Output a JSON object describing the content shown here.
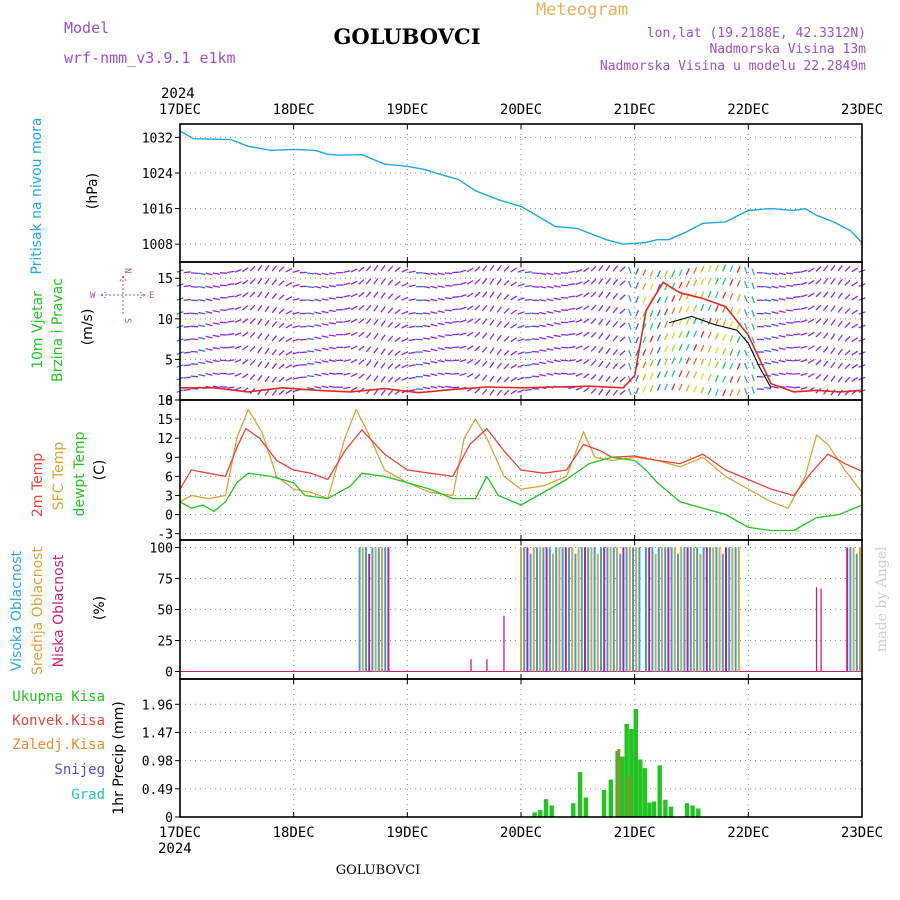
{
  "header": {
    "station": "GOLUBOVCI",
    "model_label": "Model",
    "model_name": "wrf-nmm_v3.9.1 e1km",
    "meteogram_label": "Meteogram",
    "coords": "lon,lat (19.2188E, 42.3312N)",
    "elevation": "Nadmorska Visina 13m",
    "model_elevation": "Nadmorska Visina u modelu 22.2849m",
    "year_top": "2024",
    "year_bottom": "2024",
    "footer_station": "GOLUBOVCI",
    "credit": "made by Angel"
  },
  "colors": {
    "pressure": "#1ea8e6",
    "wind_speed": "#e02a20",
    "gust": "#000000",
    "t2m": "#e8453a",
    "tsfc": "#d9a43a",
    "dewpt": "#22c422",
    "high_cloud": "#2fa6e0",
    "mid_cloud": "#d9a43a",
    "low_cloud": "#c8207a",
    "total_precip": "#22c422",
    "conv_precip": "#e8453a",
    "frozen": "#ee8a2a",
    "snow": "#5050d8",
    "hail": "#22c4b0",
    "wind_barb_low": "#8a2be2"
  },
  "chart_data": [
    {
      "type": "line",
      "id": "pressure",
      "ylabel_1": "Pritisak na nivou mora",
      "ylabel_2": "(hPa)",
      "x_ticks": [
        "17DEC",
        "18DEC",
        "19DEC",
        "20DEC",
        "21DEC",
        "22DEC",
        "23DEC"
      ],
      "xlim": [
        0,
        6
      ],
      "ylim": [
        1004,
        1035
      ],
      "y_ticks": [
        "1008",
        "1016",
        "1024",
        "1032"
      ],
      "y_tick_values": [
        1008,
        1016,
        1024,
        1032
      ],
      "grid": true,
      "series": [
        {
          "x": [
            0,
            0.12,
            0.25,
            0.45,
            0.6,
            0.8,
            1.0,
            1.1,
            1.2,
            1.3,
            1.4,
            1.6,
            1.8,
            2.0,
            2.15,
            2.3,
            2.45,
            2.6,
            2.8,
            3.0,
            3.1,
            3.3,
            3.5,
            3.6,
            3.75,
            3.9,
            4.0,
            4.1,
            4.2,
            4.3,
            4.45,
            4.6,
            4.8,
            5.0,
            5.2,
            5.4,
            5.5,
            5.6,
            5.75,
            5.9,
            6.0
          ],
          "values": [
            1033.4,
            1031.7,
            1031.6,
            1031.5,
            1030.0,
            1029.1,
            1029.3,
            1029.2,
            1029.0,
            1028.2,
            1028.0,
            1028.1,
            1026.0,
            1025.5,
            1024.8,
            1023.6,
            1022.5,
            1020.0,
            1018.0,
            1016.5,
            1015.0,
            1012.0,
            1011.5,
            1010.5,
            1009.0,
            1008.0,
            1008.2,
            1008.4,
            1009.0,
            1009.0,
            1010.7,
            1012.7,
            1013.0,
            1015.6,
            1016.0,
            1015.6,
            1016.0,
            1014.5,
            1013.0,
            1011.0,
            1008.3
          ]
        }
      ]
    },
    {
      "type": "line",
      "id": "wind",
      "ylabel_1": "10m Vjetar",
      "ylabel_2": "Brzina i Pravac",
      "ylabel_3": "(m/s)",
      "compass_n": "N",
      "compass_w": "W",
      "compass_e": "E",
      "compass_s": "S",
      "xlim": [
        0,
        6
      ],
      "ylim": [
        0,
        17
      ],
      "y_ticks": [
        "0",
        "5",
        "10",
        "15"
      ],
      "y_tick_values": [
        0,
        5,
        10,
        15
      ],
      "grid": true,
      "series": [
        {
          "name_role": "speed",
          "x": [
            0,
            0.3,
            0.6,
            0.9,
            1.2,
            1.5,
            1.8,
            2.1,
            2.4,
            2.7,
            3.0,
            3.3,
            3.6,
            3.9,
            4.0,
            4.1,
            4.25,
            4.4,
            4.6,
            4.8,
            5.0,
            5.2,
            5.4,
            5.6,
            5.8,
            6.0
          ],
          "values": [
            1.5,
            1.5,
            1.0,
            1.5,
            1.2,
            1.0,
            1.4,
            0.9,
            1.3,
            1.6,
            1.5,
            1.6,
            1.7,
            1.5,
            3.0,
            11.0,
            14.5,
            13.2,
            12.5,
            11.5,
            8.0,
            2.0,
            1.0,
            1.2,
            1.0,
            1.2
          ]
        },
        {
          "name_role": "gust",
          "x": [
            4.3,
            4.5,
            4.7,
            4.9,
            5.0,
            5.1,
            5.2
          ],
          "values": [
            9.5,
            10.3,
            9.3,
            8.6,
            7.0,
            4.0,
            1.5
          ]
        }
      ]
    },
    {
      "type": "line",
      "id": "temperature",
      "ylabel_1": "2m Temp",
      "ylabel_2": "SFC Temp",
      "ylabel_3": "dewpt Temp",
      "ylabel_4": "(C)",
      "xlim": [
        0,
        6
      ],
      "ylim": [
        -4,
        18
      ],
      "y_ticks": [
        "-3",
        "0",
        "3",
        "6",
        "9",
        "12",
        "15",
        "18"
      ],
      "y_tick_values": [
        -3,
        0,
        3,
        6,
        9,
        12,
        15,
        18
      ],
      "grid": true,
      "series": [
        {
          "name_role": "t2m",
          "x": [
            0,
            0.1,
            0.25,
            0.4,
            0.5,
            0.58,
            0.7,
            0.85,
            1.0,
            1.15,
            1.3,
            1.45,
            1.6,
            1.8,
            2.0,
            2.2,
            2.4,
            2.55,
            2.7,
            2.85,
            3.0,
            3.2,
            3.4,
            3.55,
            3.7,
            3.8,
            4.0,
            4.2,
            4.4,
            4.6,
            4.8,
            5.0,
            5.2,
            5.4,
            5.55,
            5.7,
            5.85,
            6.0
          ],
          "values": [
            4,
            7,
            6.5,
            6,
            10.5,
            13.5,
            12,
            8.5,
            7,
            6.5,
            5.5,
            10,
            13.3,
            9.5,
            7,
            6.5,
            6,
            11,
            13.5,
            10,
            7,
            6.5,
            7,
            11,
            10,
            9,
            9.2,
            8.5,
            8,
            9.5,
            7,
            5.5,
            4,
            3,
            6.5,
            9.5,
            8,
            6.8
          ]
        },
        {
          "name_role": "tsfc",
          "x": [
            0,
            0.1,
            0.25,
            0.4,
            0.5,
            0.6,
            0.72,
            0.85,
            1.0,
            1.15,
            1.3,
            1.45,
            1.55,
            1.65,
            1.8,
            2.0,
            2.2,
            2.4,
            2.5,
            2.6,
            2.7,
            2.85,
            3.0,
            3.2,
            3.4,
            3.55,
            3.65,
            3.8,
            4.0,
            4.2,
            4.4,
            4.6,
            4.8,
            5.0,
            5.2,
            5.35,
            5.5,
            5.6,
            5.7,
            5.85,
            6.0
          ],
          "values": [
            2,
            3,
            2.5,
            3,
            12,
            16.5,
            13,
            6,
            4,
            3.5,
            2.5,
            12,
            16.5,
            13,
            7,
            5,
            3.5,
            3,
            12,
            15,
            12,
            6,
            4,
            4.5,
            6,
            13,
            9,
            8.5,
            9,
            8.5,
            7.5,
            9,
            6,
            4,
            2,
            1,
            6,
            12.5,
            11,
            7,
            3.5
          ]
        },
        {
          "name_role": "dewpt",
          "x": [
            0,
            0.1,
            0.2,
            0.3,
            0.4,
            0.5,
            0.6,
            0.8,
            1.0,
            1.1,
            1.3,
            1.5,
            1.6,
            1.8,
            2.0,
            2.2,
            2.4,
            2.6,
            2.7,
            2.8,
            3.0,
            3.2,
            3.4,
            3.6,
            3.8,
            4.0,
            4.1,
            4.2,
            4.4,
            4.6,
            4.8,
            5.0,
            5.2,
            5.4,
            5.6,
            5.8,
            6.0
          ],
          "values": [
            2,
            1,
            1.5,
            0.5,
            2,
            5,
            6.5,
            6,
            5,
            3,
            2.5,
            4.5,
            6.5,
            6,
            5,
            4,
            2.5,
            2.5,
            6,
            3,
            1.5,
            3.5,
            5.5,
            8,
            9,
            8.5,
            7,
            5,
            2,
            1,
            0,
            -2,
            -2.5,
            -2.5,
            -0.5,
            0,
            1.5
          ]
        }
      ]
    },
    {
      "type": "bar",
      "id": "cloud",
      "ylabel_1": "Visoka Oblacnost",
      "ylabel_2": "Srednja Oblacnost",
      "ylabel_3": "Niska Oblacnost",
      "ylabel_4": "(%)",
      "xlim": [
        0,
        6
      ],
      "ylim": [
        -6,
        106
      ],
      "y_ticks": [
        "0",
        "25",
        "50",
        "75",
        "100"
      ],
      "y_tick_values": [
        0,
        25,
        50,
        75,
        100
      ],
      "grid": true,
      "high_blocks": [
        {
          "from": 1.58,
          "to": 1.84,
          "value": 100
        },
        {
          "from": 3.0,
          "to": 4.06,
          "value": 100
        },
        {
          "from": 4.1,
          "to": 4.92,
          "value": 100
        },
        {
          "from": 5.87,
          "to": 6.0,
          "value": 100
        }
      ],
      "low_spikes": [
        {
          "x": 2.56,
          "value": 10
        },
        {
          "x": 2.7,
          "value": 10
        },
        {
          "x": 2.85,
          "value": 45
        },
        {
          "x": 5.6,
          "value": 68
        },
        {
          "x": 5.64,
          "value": 67
        }
      ]
    },
    {
      "type": "bar",
      "id": "precip",
      "ylabel_1": "1hr Precip (mm)",
      "legend": [
        "Ukupna Kisa",
        "Konvek.Kisa",
        "Zaledj.Kisa",
        "Snijeg",
        "Grad"
      ],
      "x_ticks": [
        "17DEC",
        "18DEC",
        "19DEC",
        "20DEC",
        "21DEC",
        "22DEC",
        "23DEC"
      ],
      "xlim": [
        0,
        6
      ],
      "ylim": [
        0,
        2.4
      ],
      "y_ticks": [
        "0",
        "0.49",
        "0.98",
        "1.47",
        "1.96"
      ],
      "y_tick_values": [
        0,
        0.49,
        0.98,
        1.47,
        1.96
      ],
      "grid": true,
      "bars": [
        {
          "x": 3.12,
          "value": 0.08
        },
        {
          "x": 3.17,
          "value": 0.12
        },
        {
          "x": 3.22,
          "value": 0.31
        },
        {
          "x": 3.27,
          "value": 0.2
        },
        {
          "x": 3.46,
          "value": 0.24
        },
        {
          "x": 3.52,
          "value": 0.78
        },
        {
          "x": 3.57,
          "value": 0.34
        },
        {
          "x": 3.73,
          "value": 0.47
        },
        {
          "x": 3.79,
          "value": 0.65
        },
        {
          "x": 3.85,
          "value": 1.15
        },
        {
          "x": 3.89,
          "value": 1.05
        },
        {
          "x": 3.93,
          "value": 1.62
        },
        {
          "x": 3.97,
          "value": 1.53
        },
        {
          "x": 4.01,
          "value": 1.88
        },
        {
          "x": 4.05,
          "value": 1.0
        },
        {
          "x": 4.09,
          "value": 0.85
        },
        {
          "x": 4.13,
          "value": 0.25
        },
        {
          "x": 4.17,
          "value": 0.27
        },
        {
          "x": 4.22,
          "value": 0.9
        },
        {
          "x": 4.27,
          "value": 0.3
        },
        {
          "x": 4.32,
          "value": 0.18
        },
        {
          "x": 4.46,
          "value": 0.24
        },
        {
          "x": 4.51,
          "value": 0.2
        },
        {
          "x": 4.56,
          "value": 0.15
        }
      ],
      "conv_bars": [
        {
          "x": 3.86,
          "value": 1.18
        },
        {
          "x": 3.95,
          "value": 0.7
        }
      ]
    }
  ]
}
